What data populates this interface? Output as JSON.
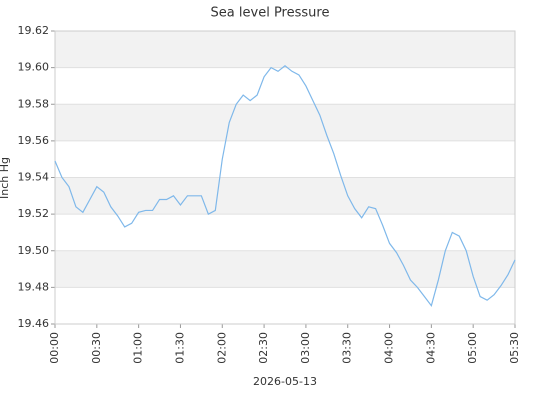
{
  "chart_data": {
    "type": "line",
    "title": "Sea level Pressure",
    "xlabel": "2026-05-13",
    "ylabel": "Inch Hg",
    "x": [
      "00:00",
      "00:05",
      "00:10",
      "00:15",
      "00:20",
      "00:25",
      "00:30",
      "00:35",
      "00:40",
      "00:45",
      "00:50",
      "00:55",
      "01:00",
      "01:05",
      "01:10",
      "01:15",
      "01:20",
      "01:25",
      "01:30",
      "01:35",
      "01:40",
      "01:45",
      "01:50",
      "01:55",
      "02:00",
      "02:05",
      "02:10",
      "02:15",
      "02:20",
      "02:25",
      "02:30",
      "02:35",
      "02:40",
      "02:45",
      "02:50",
      "02:55",
      "03:00",
      "03:05",
      "03:10",
      "03:15",
      "03:20",
      "03:25",
      "03:30",
      "03:35",
      "03:40",
      "03:45",
      "03:50",
      "03:55",
      "04:00",
      "04:05",
      "04:10",
      "04:15",
      "04:20",
      "04:25",
      "04:30",
      "04:35",
      "04:40",
      "04:45",
      "04:50",
      "04:55",
      "05:00",
      "05:05",
      "05:10",
      "05:15",
      "05:20",
      "05:25",
      "05:30"
    ],
    "values": [
      19.549,
      19.54,
      19.535,
      19.524,
      19.521,
      19.528,
      19.535,
      19.532,
      19.524,
      19.519,
      19.513,
      19.515,
      19.521,
      19.522,
      19.522,
      19.528,
      19.528,
      19.53,
      19.525,
      19.53,
      19.53,
      19.53,
      19.52,
      19.522,
      19.55,
      19.57,
      19.58,
      19.585,
      19.582,
      19.585,
      19.595,
      19.6,
      19.598,
      19.601,
      19.598,
      19.596,
      19.59,
      19.582,
      19.574,
      19.563,
      19.553,
      19.541,
      19.53,
      19.523,
      19.518,
      19.524,
      19.523,
      19.514,
      19.504,
      19.499,
      19.492,
      19.484,
      19.48,
      19.475,
      19.47,
      19.484,
      19.5,
      19.51,
      19.508,
      19.5,
      19.486,
      19.475,
      19.473,
      19.476,
      19.481,
      19.487,
      19.495
    ],
    "color": "#7fb8ea",
    "xlim": [
      "00:00",
      "05:30"
    ],
    "xticks": [
      "00:00",
      "00:30",
      "01:00",
      "01:30",
      "02:00",
      "02:30",
      "03:00",
      "03:30",
      "04:00",
      "04:30",
      "05:00",
      "05:30"
    ],
    "ylim": [
      19.46,
      19.62
    ],
    "yticks": [
      19.46,
      19.48,
      {
        "value": 19.5,
        "label": "19.50"
      },
      19.52,
      19.54,
      19.56,
      19.58,
      {
        "value": 19.6,
        "label": "19.60"
      },
      19.62
    ],
    "grid": true,
    "bands": true
  }
}
